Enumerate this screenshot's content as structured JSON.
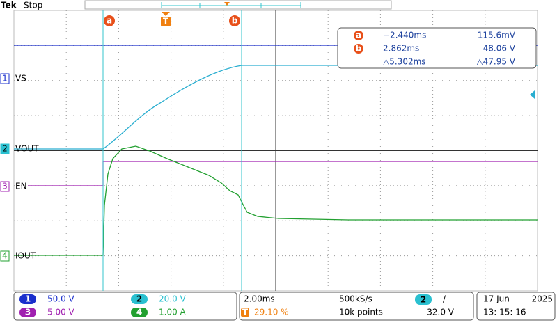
{
  "header": {
    "brand": "Tek",
    "status": "Stop"
  },
  "markers": {
    "cursor_a": "a",
    "trigger": "T",
    "cursor_b": "b"
  },
  "cursor_readout": {
    "rows": [
      {
        "icon": "a",
        "time": "−2.440ms",
        "value": "115.6mV"
      },
      {
        "icon": "b",
        "time": "2.862ms",
        "value": "48.06 V"
      },
      {
        "time": "△5.302ms",
        "value": "△47.95 V"
      }
    ]
  },
  "channels": [
    {
      "number": "1",
      "label": "VS",
      "scale": "50.0 V"
    },
    {
      "number": "2",
      "label": "VOUT",
      "scale": "20.0 V"
    },
    {
      "number": "3",
      "label": "EN",
      "scale": "5.00 V"
    },
    {
      "number": "4",
      "label": "IOUT",
      "scale": "1.00 A"
    }
  ],
  "acquisition": {
    "timebase": "2.00ms",
    "trigger_icon": "T",
    "trigger_position": "29.10 %",
    "sample_rate": "500kS/s",
    "record_length": "10k points",
    "trigger_source": "2",
    "trigger_slope": "/",
    "trigger_level": "32.0 V"
  },
  "timestamp": {
    "date": "17 Jun",
    "year": "2025",
    "time": "13: 15: 16"
  }
}
